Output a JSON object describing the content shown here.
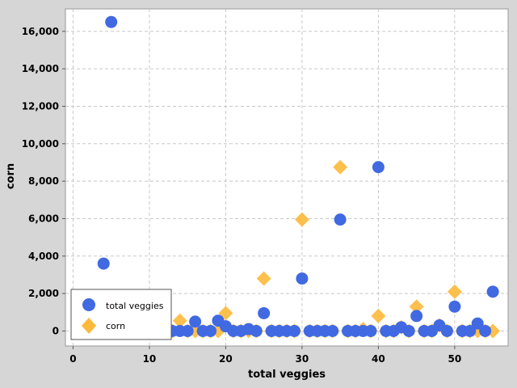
{
  "chart_data": {
    "type": "scatter",
    "xlabel": "total veggies",
    "ylabel": "corn",
    "xlim": [
      -1,
      57
    ],
    "ylim": [
      -800,
      17200
    ],
    "x_ticks": [
      0,
      10,
      20,
      30,
      40,
      50
    ],
    "y_ticks": [
      0,
      2000,
      4000,
      6000,
      8000,
      10000,
      12000,
      14000,
      16000
    ],
    "x_tick_labels": [
      "0",
      "10",
      "20",
      "30",
      "40",
      "50"
    ],
    "y_tick_labels": [
      "0",
      "2,000",
      "4,000",
      "6,000",
      "8,000",
      "10,000",
      "12,000",
      "14,000",
      "16,000"
    ],
    "grid": true,
    "legend": "bottom-left",
    "series": [
      {
        "name": "total veggies",
        "marker": "circle",
        "color": "#4169e1",
        "x": [
          4,
          5,
          12,
          13,
          14,
          15,
          16,
          17,
          18,
          19,
          20,
          21,
          22,
          23,
          24,
          25,
          26,
          27,
          28,
          29,
          30,
          31,
          32,
          33,
          34,
          35,
          36,
          37,
          38,
          39,
          40,
          41,
          42,
          43,
          44,
          45,
          46,
          47,
          48,
          49,
          50,
          51,
          52,
          53,
          54,
          55
        ],
        "y": [
          3600,
          16500,
          0,
          0,
          0,
          0,
          500,
          0,
          0,
          550,
          250,
          0,
          0,
          100,
          0,
          950,
          0,
          0,
          0,
          0,
          2800,
          0,
          0,
          0,
          0,
          5950,
          0,
          0,
          0,
          0,
          8750,
          0,
          0,
          200,
          0,
          800,
          0,
          0,
          300,
          0,
          1300,
          0,
          0,
          400,
          0,
          2100
        ]
      },
      {
        "name": "corn",
        "marker": "diamond",
        "color": "#fdb93a",
        "x": [
          12,
          13,
          14,
          15,
          16,
          17,
          18,
          19,
          20,
          21,
          22,
          23,
          24,
          25,
          26,
          27,
          28,
          29,
          30,
          31,
          32,
          33,
          34,
          35,
          36,
          37,
          38,
          39,
          40,
          41,
          42,
          43,
          44,
          45,
          46,
          47,
          48,
          49,
          50,
          51,
          52,
          53,
          54,
          55
        ],
        "y": [
          0,
          0,
          550,
          0,
          0,
          0,
          0,
          0,
          950,
          0,
          0,
          0,
          0,
          2800,
          0,
          0,
          0,
          0,
          5950,
          0,
          0,
          0,
          0,
          8750,
          0,
          0,
          100,
          0,
          800,
          0,
          0,
          200,
          0,
          1300,
          0,
          0,
          300,
          0,
          2100,
          0,
          0,
          0,
          0,
          0
        ]
      }
    ]
  }
}
